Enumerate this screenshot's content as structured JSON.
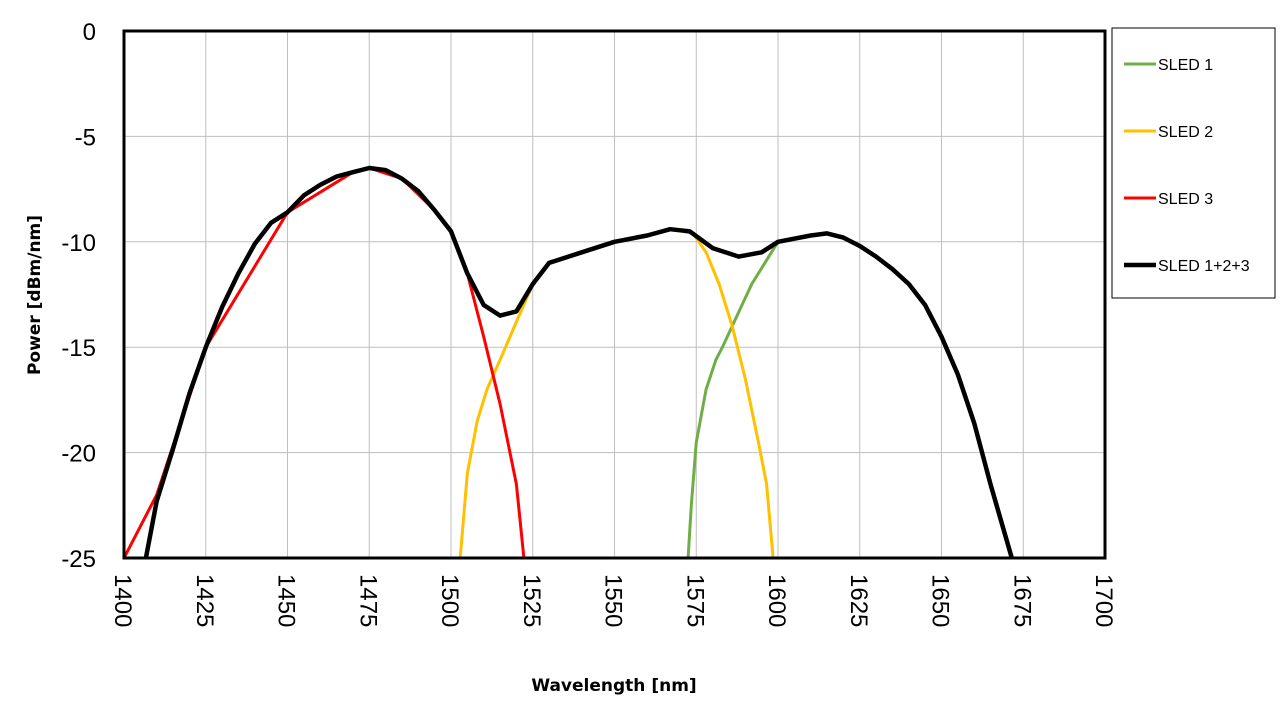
{
  "chart_data": {
    "type": "line",
    "title": "",
    "xlabel": "Wavelength [nm]",
    "ylabel": "Power [dBm/nm]",
    "xlim": [
      1400,
      1700
    ],
    "ylim": [
      -25,
      0
    ],
    "xticks": [
      "1400",
      "1425",
      "1450",
      "1475",
      "1500",
      "1525",
      "1550",
      "1575",
      "1600",
      "1625",
      "1650",
      "1675",
      "1700"
    ],
    "yticks": [
      "0",
      "-5",
      "-10",
      "-15",
      "-20",
      "-25"
    ],
    "grid": true,
    "legend_position": "right",
    "series": [
      {
        "name": "SLED 1",
        "color": "#70ad47",
        "x": [
          1572.5,
          1573.5,
          1575,
          1578,
          1581,
          1583,
          1586,
          1589,
          1592,
          1596,
          1600
        ],
        "y": [
          -25,
          -22.5,
          -19.5,
          -17,
          -15.6,
          -15,
          -14,
          -13,
          -12,
          -11,
          -10
        ]
      },
      {
        "name": "SLED 2",
        "color": "#ffc000",
        "x": [
          1502.8,
          1505,
          1508,
          1511,
          1515,
          1520,
          1525,
          1530,
          1540,
          1550,
          1560,
          1567,
          1574,
          1578,
          1582,
          1586,
          1590,
          1594,
          1596.5,
          1598.5
        ],
        "y": [
          -25,
          -21,
          -18.5,
          -17,
          -15.6,
          -13.8,
          -12,
          -11,
          -10.5,
          -10,
          -9.7,
          -9.4,
          -9.6,
          -10.5,
          -12,
          -14,
          -16.5,
          -19.5,
          -21.5,
          -25
        ]
      },
      {
        "name": "SLED 3",
        "color": "#ff0000",
        "x": [
          1400,
          1410,
          1425,
          1450,
          1470,
          1475,
          1485,
          1495,
          1500,
          1505,
          1510,
          1515,
          1520,
          1522.3
        ],
        "y": [
          -25,
          -22,
          -15,
          -8.6,
          -6.7,
          -6.5,
          -7,
          -8.5,
          -9.5,
          -11.5,
          -14.5,
          -17.7,
          -21.5,
          -25
        ]
      },
      {
        "name": "SLED 1+2+3",
        "color": "#000000",
        "x": [
          1406.7,
          1410,
          1415,
          1420,
          1425,
          1430,
          1435,
          1440,
          1445,
          1450,
          1455,
          1460,
          1465,
          1470,
          1475,
          1480,
          1485,
          1490,
          1495,
          1500,
          1505,
          1510,
          1515,
          1520,
          1525,
          1530,
          1540,
          1550,
          1560,
          1567,
          1573,
          1580,
          1588,
          1595,
          1600,
          1610,
          1615,
          1620,
          1625,
          1630,
          1635,
          1640,
          1645,
          1650,
          1655,
          1660,
          1665,
          1671.5
        ],
        "y": [
          -25,
          -22.3,
          -19.8,
          -17.2,
          -15,
          -13.1,
          -11.5,
          -10.1,
          -9.1,
          -8.6,
          -7.8,
          -7.3,
          -6.9,
          -6.7,
          -6.5,
          -6.6,
          -7,
          -7.6,
          -8.5,
          -9.5,
          -11.5,
          -13,
          -13.5,
          -13.3,
          -12,
          -11,
          -10.5,
          -10,
          -9.7,
          -9.4,
          -9.5,
          -10.3,
          -10.7,
          -10.5,
          -10,
          -9.7,
          -9.6,
          -9.8,
          -10.2,
          -10.7,
          -11.3,
          -12,
          -13,
          -14.5,
          -16.3,
          -18.6,
          -21.5,
          -25
        ]
      }
    ]
  }
}
